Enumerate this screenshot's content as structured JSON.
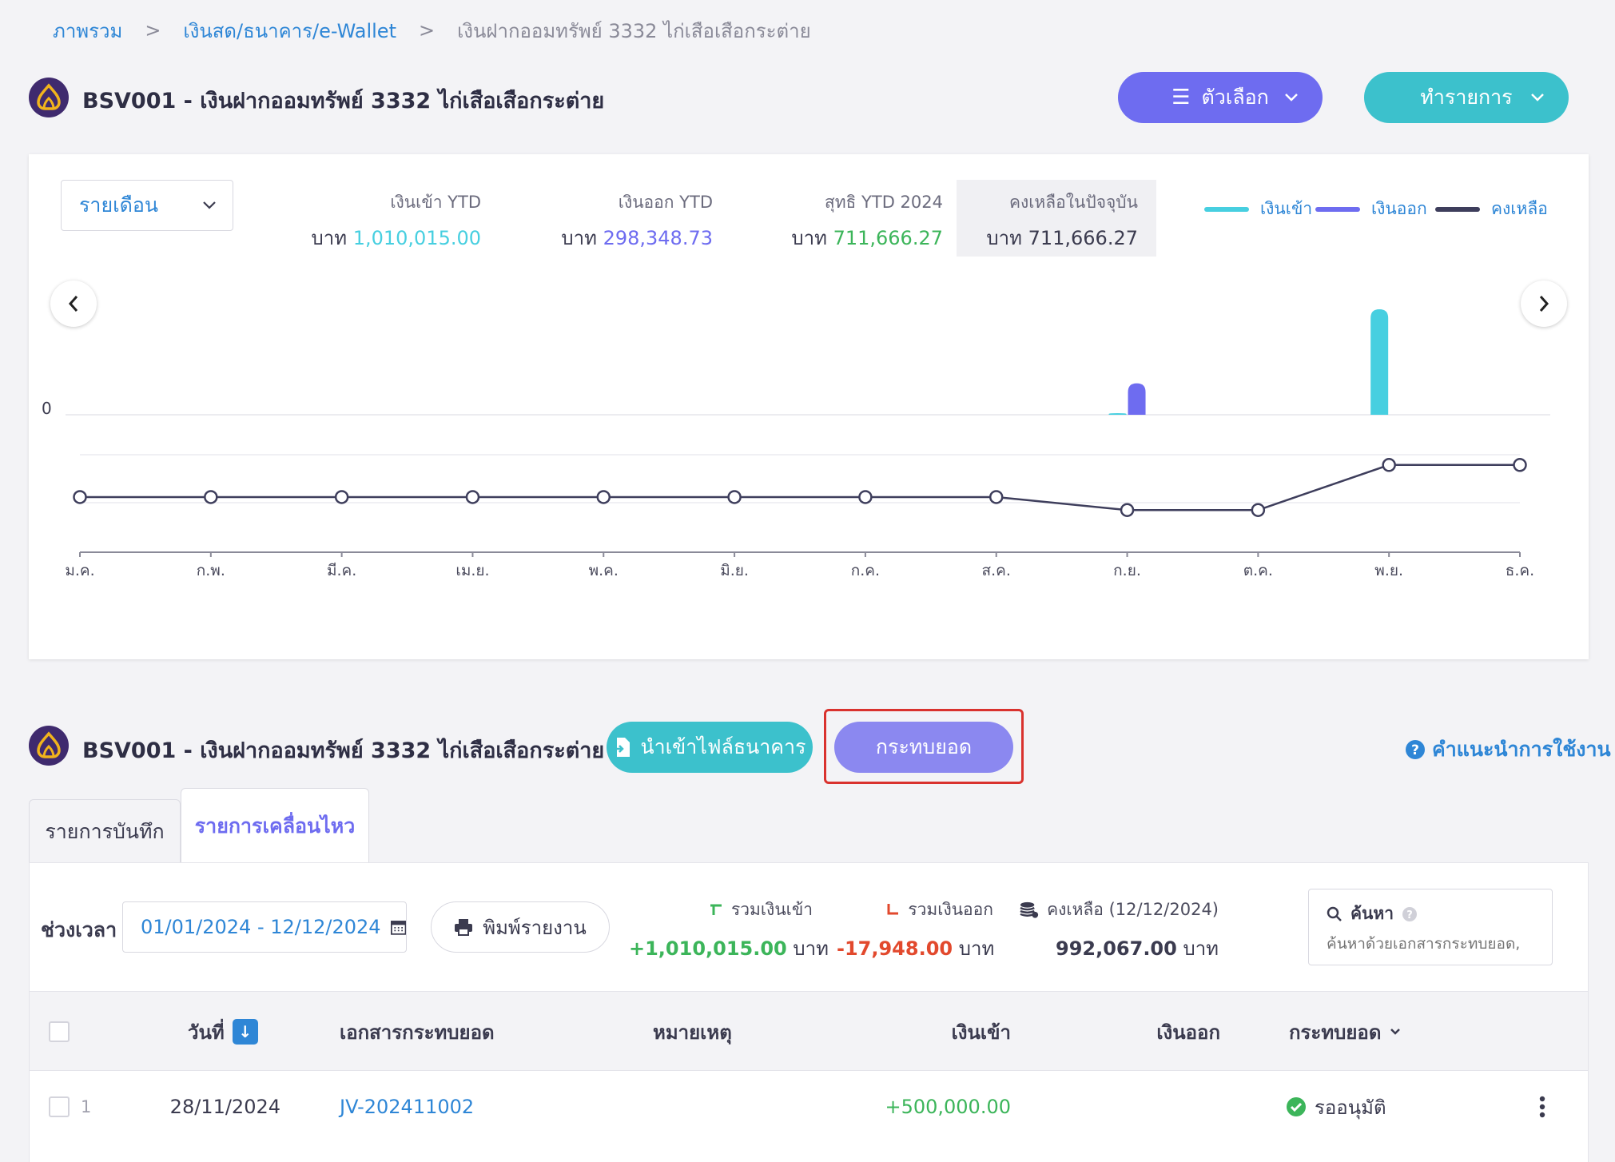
{
  "breadcrumb": {
    "home": "ภาพรวม",
    "section": "เงินสด/ธนาคาร/e-Wallet",
    "current": "เงินฝากออมทรัพย์ 3332 ไก่เสือเสือกระต่าย",
    "separator": ">"
  },
  "account": {
    "title": "BSV001 - เงินฝากออมทรัพย์ 3332 ไก่เสือเสือกระต่าย"
  },
  "header_buttons": {
    "options": "ตัวเลือก",
    "transact": "ทำรายการ"
  },
  "summary": {
    "period": "รายเดือน",
    "income_label": "เงินเข้า YTD",
    "income_currency": "บาท",
    "income_value": "1,010,015.00",
    "expense_label": "เงินออก YTD",
    "expense_currency": "บาท",
    "expense_value": "298,348.73",
    "net_label": "สุทธิ YTD 2024",
    "net_currency": "บาท",
    "net_value": "711,666.27",
    "balance_label": "คงเหลือในปัจจุบัน",
    "balance_currency": "บาท",
    "balance_value": "711,666.27"
  },
  "legend": {
    "income": "เงินเข้า",
    "expense": "เงินออก",
    "balance": "คงเหลือ"
  },
  "colors": {
    "income": "#47cfe0",
    "expense": "#6e6cf0",
    "balance": "#3e3e5c",
    "positive": "#3cb55a",
    "negative": "#e2492d"
  },
  "chart_data": {
    "type": "bar",
    "categories": [
      "ม.ค.",
      "ก.พ.",
      "มี.ค.",
      "เม.ย.",
      "พ.ค.",
      "มิ.ย.",
      "ก.ค.",
      "ส.ค.",
      "ก.ย.",
      "ต.ค.",
      "พ.ย.",
      "ธ.ค."
    ],
    "series": [
      {
        "name": "เงินเข้า",
        "type": "bar",
        "values": [
          0,
          0,
          0,
          0,
          0,
          0,
          0,
          0,
          10015,
          0,
          1000000,
          0
        ]
      },
      {
        "name": "เงินออก",
        "type": "bar",
        "values": [
          0,
          0,
          0,
          0,
          0,
          0,
          0,
          0,
          298348.73,
          0,
          0,
          0
        ]
      },
      {
        "name": "คงเหลือ",
        "type": "line",
        "values": [
          0,
          0,
          0,
          0,
          0,
          0,
          0,
          0,
          -288333.73,
          -288333.73,
          711666.27,
          711666.27
        ]
      }
    ],
    "y_tick_label": "0",
    "title": "",
    "xlabel": "",
    "ylabel": ""
  },
  "section2": {
    "title": "BSV001 - เงินฝากออมทรัพย์ 3332 ไก่เสือเสือกระต่าย",
    "import_button": "นำเข้าไฟล์ธนาคาร",
    "reconcile_button": "กระทบยอด",
    "help": "คำแนะนำการใช้งาน"
  },
  "tabs": {
    "records": "รายการบันทึก",
    "movements": "รายการเคลื่อนไหว"
  },
  "filters": {
    "period_label": "ช่วงเวลา",
    "date_range": "01/01/2024 - 12/12/2024",
    "print": "พิมพ์รายงาน",
    "total_in_label": "รวมเงินเข้า",
    "total_in_value": "+1,010,015.00",
    "total_in_unit": "บาท",
    "total_out_label": "รวมเงินออก",
    "total_out_value": "-17,948.00",
    "total_out_unit": "บาท",
    "balance_label": "คงเหลือ (12/12/2024)",
    "balance_value": "992,067.00",
    "balance_unit": "บาท",
    "search_label": "ค้นหา",
    "search_placeholder": "ค้นหาด้วยเอกสารกระทบยอด,"
  },
  "table": {
    "columns": {
      "date": "วันที่",
      "doc": "เอกสารกระทบยอด",
      "note": "หมายเหตุ",
      "income": "เงินเข้า",
      "expense": "เงินออก",
      "reconcile": "กระทบยอด"
    },
    "rows": [
      {
        "index": "1",
        "date": "28/11/2024",
        "doc": "JV-202411002",
        "note": "",
        "income": "+500,000.00",
        "expense": "",
        "status": "รออนุมัติ"
      }
    ]
  }
}
